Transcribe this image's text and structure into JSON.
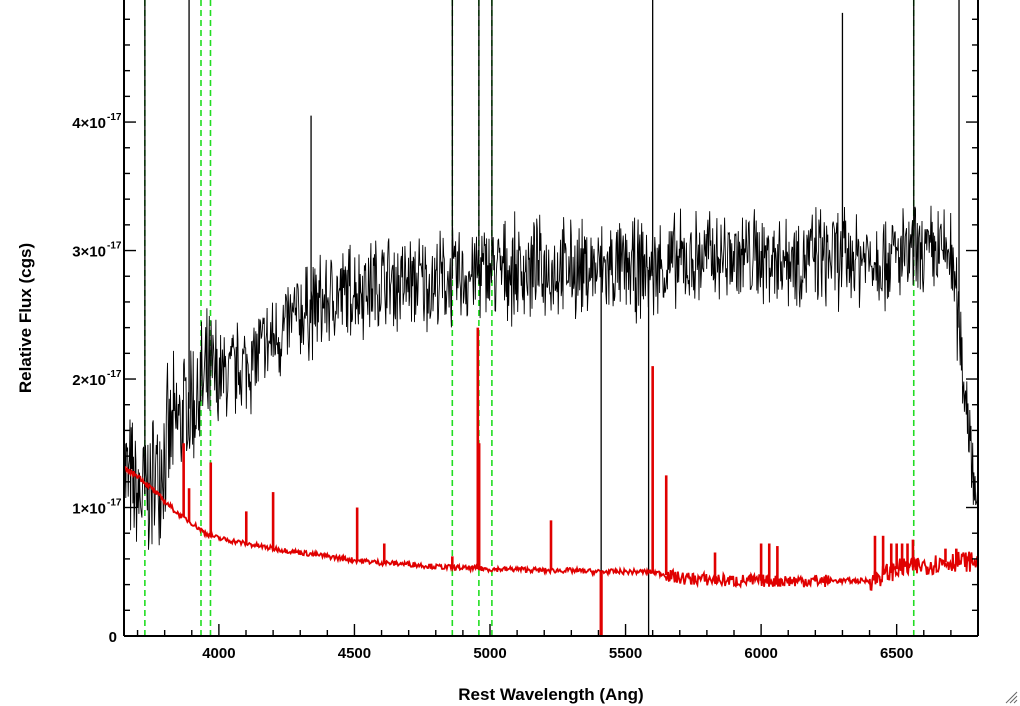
{
  "chart_data": {
    "type": "line",
    "xlabel": "Rest Wavelength (Ang)",
    "ylabel": "Relative Flux (cgs)",
    "xlim": [
      3650,
      6800
    ],
    "ylim": [
      0,
      4.95e-17
    ],
    "x_ticks": [
      4000,
      4500,
      5000,
      5500,
      6000,
      6500
    ],
    "y_ticks": [
      {
        "value": 0,
        "mantissa": "0",
        "exp": ""
      },
      {
        "value": 1e-17,
        "mantissa": "1×10",
        "exp": "-17"
      },
      {
        "value": 2e-17,
        "mantissa": "2×10",
        "exp": "-17"
      },
      {
        "value": 3e-17,
        "mantissa": "3×10",
        "exp": "-17"
      },
      {
        "value": 4e-17,
        "mantissa": "4×10",
        "exp": "-17"
      }
    ],
    "grid": false,
    "legend": "none",
    "series": [
      {
        "color": "#000000",
        "style": "solid",
        "unit_scale": 1e-17,
        "x": [
          3650,
          3700,
          3750,
          3800,
          3850,
          3900,
          3950,
          4000,
          4100,
          4200,
          4300,
          4400,
          4500,
          4600,
          4700,
          4800,
          4900,
          5000,
          5100,
          5200,
          5300,
          5400,
          5500,
          5600,
          5700,
          5800,
          5900,
          6000,
          6100,
          6200,
          6300,
          6400,
          6500,
          6600,
          6700,
          6800
        ],
        "y": [
          1.3,
          1.05,
          1.15,
          1.45,
          1.65,
          1.8,
          1.95,
          2.0,
          2.1,
          2.3,
          2.5,
          2.6,
          2.7,
          2.75,
          2.75,
          2.75,
          2.8,
          2.85,
          2.85,
          2.85,
          2.85,
          2.85,
          2.85,
          2.85,
          2.9,
          2.95,
          2.95,
          2.95,
          2.95,
          2.95,
          2.95,
          2.95,
          2.95,
          2.95,
          3.0,
          1.0
        ],
        "spikes": [
          {
            "x": 3727,
            "y": 4.95
          },
          {
            "x": 3890,
            "y": 4.95
          },
          {
            "x": 4340,
            "y": 4.05
          },
          {
            "x": 4861,
            "y": 4.95
          },
          {
            "x": 4959,
            "y": 4.95
          },
          {
            "x": 5007,
            "y": 4.95
          },
          {
            "x": 5410,
            "y": 0
          },
          {
            "x": 5585,
            "y": 0
          },
          {
            "x": 5600,
            "y": 4.95
          },
          {
            "x": 6300,
            "y": 4.85
          },
          {
            "x": 6563,
            "y": 4.95
          },
          {
            "x": 6730,
            "y": 4.95
          }
        ]
      },
      {
        "color": "#e00000",
        "style": "solid",
        "unit_scale": 1e-17,
        "x": [
          3650,
          3700,
          3750,
          3800,
          3850,
          3900,
          3950,
          4000,
          4100,
          4200,
          4300,
          4400,
          4500,
          4600,
          4700,
          4800,
          4900,
          5000,
          5100,
          5200,
          5300,
          5400,
          5500,
          5600,
          5700,
          5800,
          5900,
          6000,
          6100,
          6200,
          6300,
          6400,
          6500,
          6600,
          6700,
          6800
        ],
        "y": [
          1.3,
          1.25,
          1.15,
          1.05,
          0.95,
          0.88,
          0.8,
          0.76,
          0.72,
          0.68,
          0.65,
          0.62,
          0.59,
          0.57,
          0.56,
          0.54,
          0.53,
          0.52,
          0.52,
          0.51,
          0.51,
          0.5,
          0.5,
          0.5,
          0.45,
          0.44,
          0.43,
          0.43,
          0.43,
          0.43,
          0.43,
          0.43,
          0.52,
          0.55,
          0.58,
          0.58
        ],
        "lines": [
          {
            "x": 3870,
            "y": 1.5
          },
          {
            "x": 3890,
            "y": 1.15
          },
          {
            "x": 3970,
            "y": 1.35
          },
          {
            "x": 4101,
            "y": 0.97
          },
          {
            "x": 4200,
            "y": 1.12
          },
          {
            "x": 4510,
            "y": 1.0
          },
          {
            "x": 4610,
            "y": 0.72
          },
          {
            "x": 4861,
            "y": 0.62
          },
          {
            "x": 4955,
            "y": 2.4
          },
          {
            "x": 4960,
            "y": 1.5
          },
          {
            "x": 5225,
            "y": 0.9
          },
          {
            "x": 5600,
            "y": 2.1
          },
          {
            "x": 5650,
            "y": 1.25
          },
          {
            "x": 5830,
            "y": 0.65
          },
          {
            "x": 6000,
            "y": 0.72
          },
          {
            "x": 6030,
            "y": 0.72
          },
          {
            "x": 6060,
            "y": 0.7
          },
          {
            "x": 6420,
            "y": 0.78
          },
          {
            "x": 6450,
            "y": 0.78
          },
          {
            "x": 6480,
            "y": 0.72
          },
          {
            "x": 6500,
            "y": 0.72
          },
          {
            "x": 6520,
            "y": 0.72
          },
          {
            "x": 6540,
            "y": 0.72
          },
          {
            "x": 6560,
            "y": 0.75
          },
          {
            "x": 6680,
            "y": 0.68
          },
          {
            "x": 6720,
            "y": 0.68
          }
        ],
        "dips": [
          {
            "x": 5410,
            "y": 0
          }
        ]
      }
    ],
    "marker_lines": {
      "color": "#22dd22",
      "style": "dashed",
      "x": [
        3727,
        3934,
        3969,
        4861,
        4959,
        5007,
        6563
      ]
    }
  }
}
